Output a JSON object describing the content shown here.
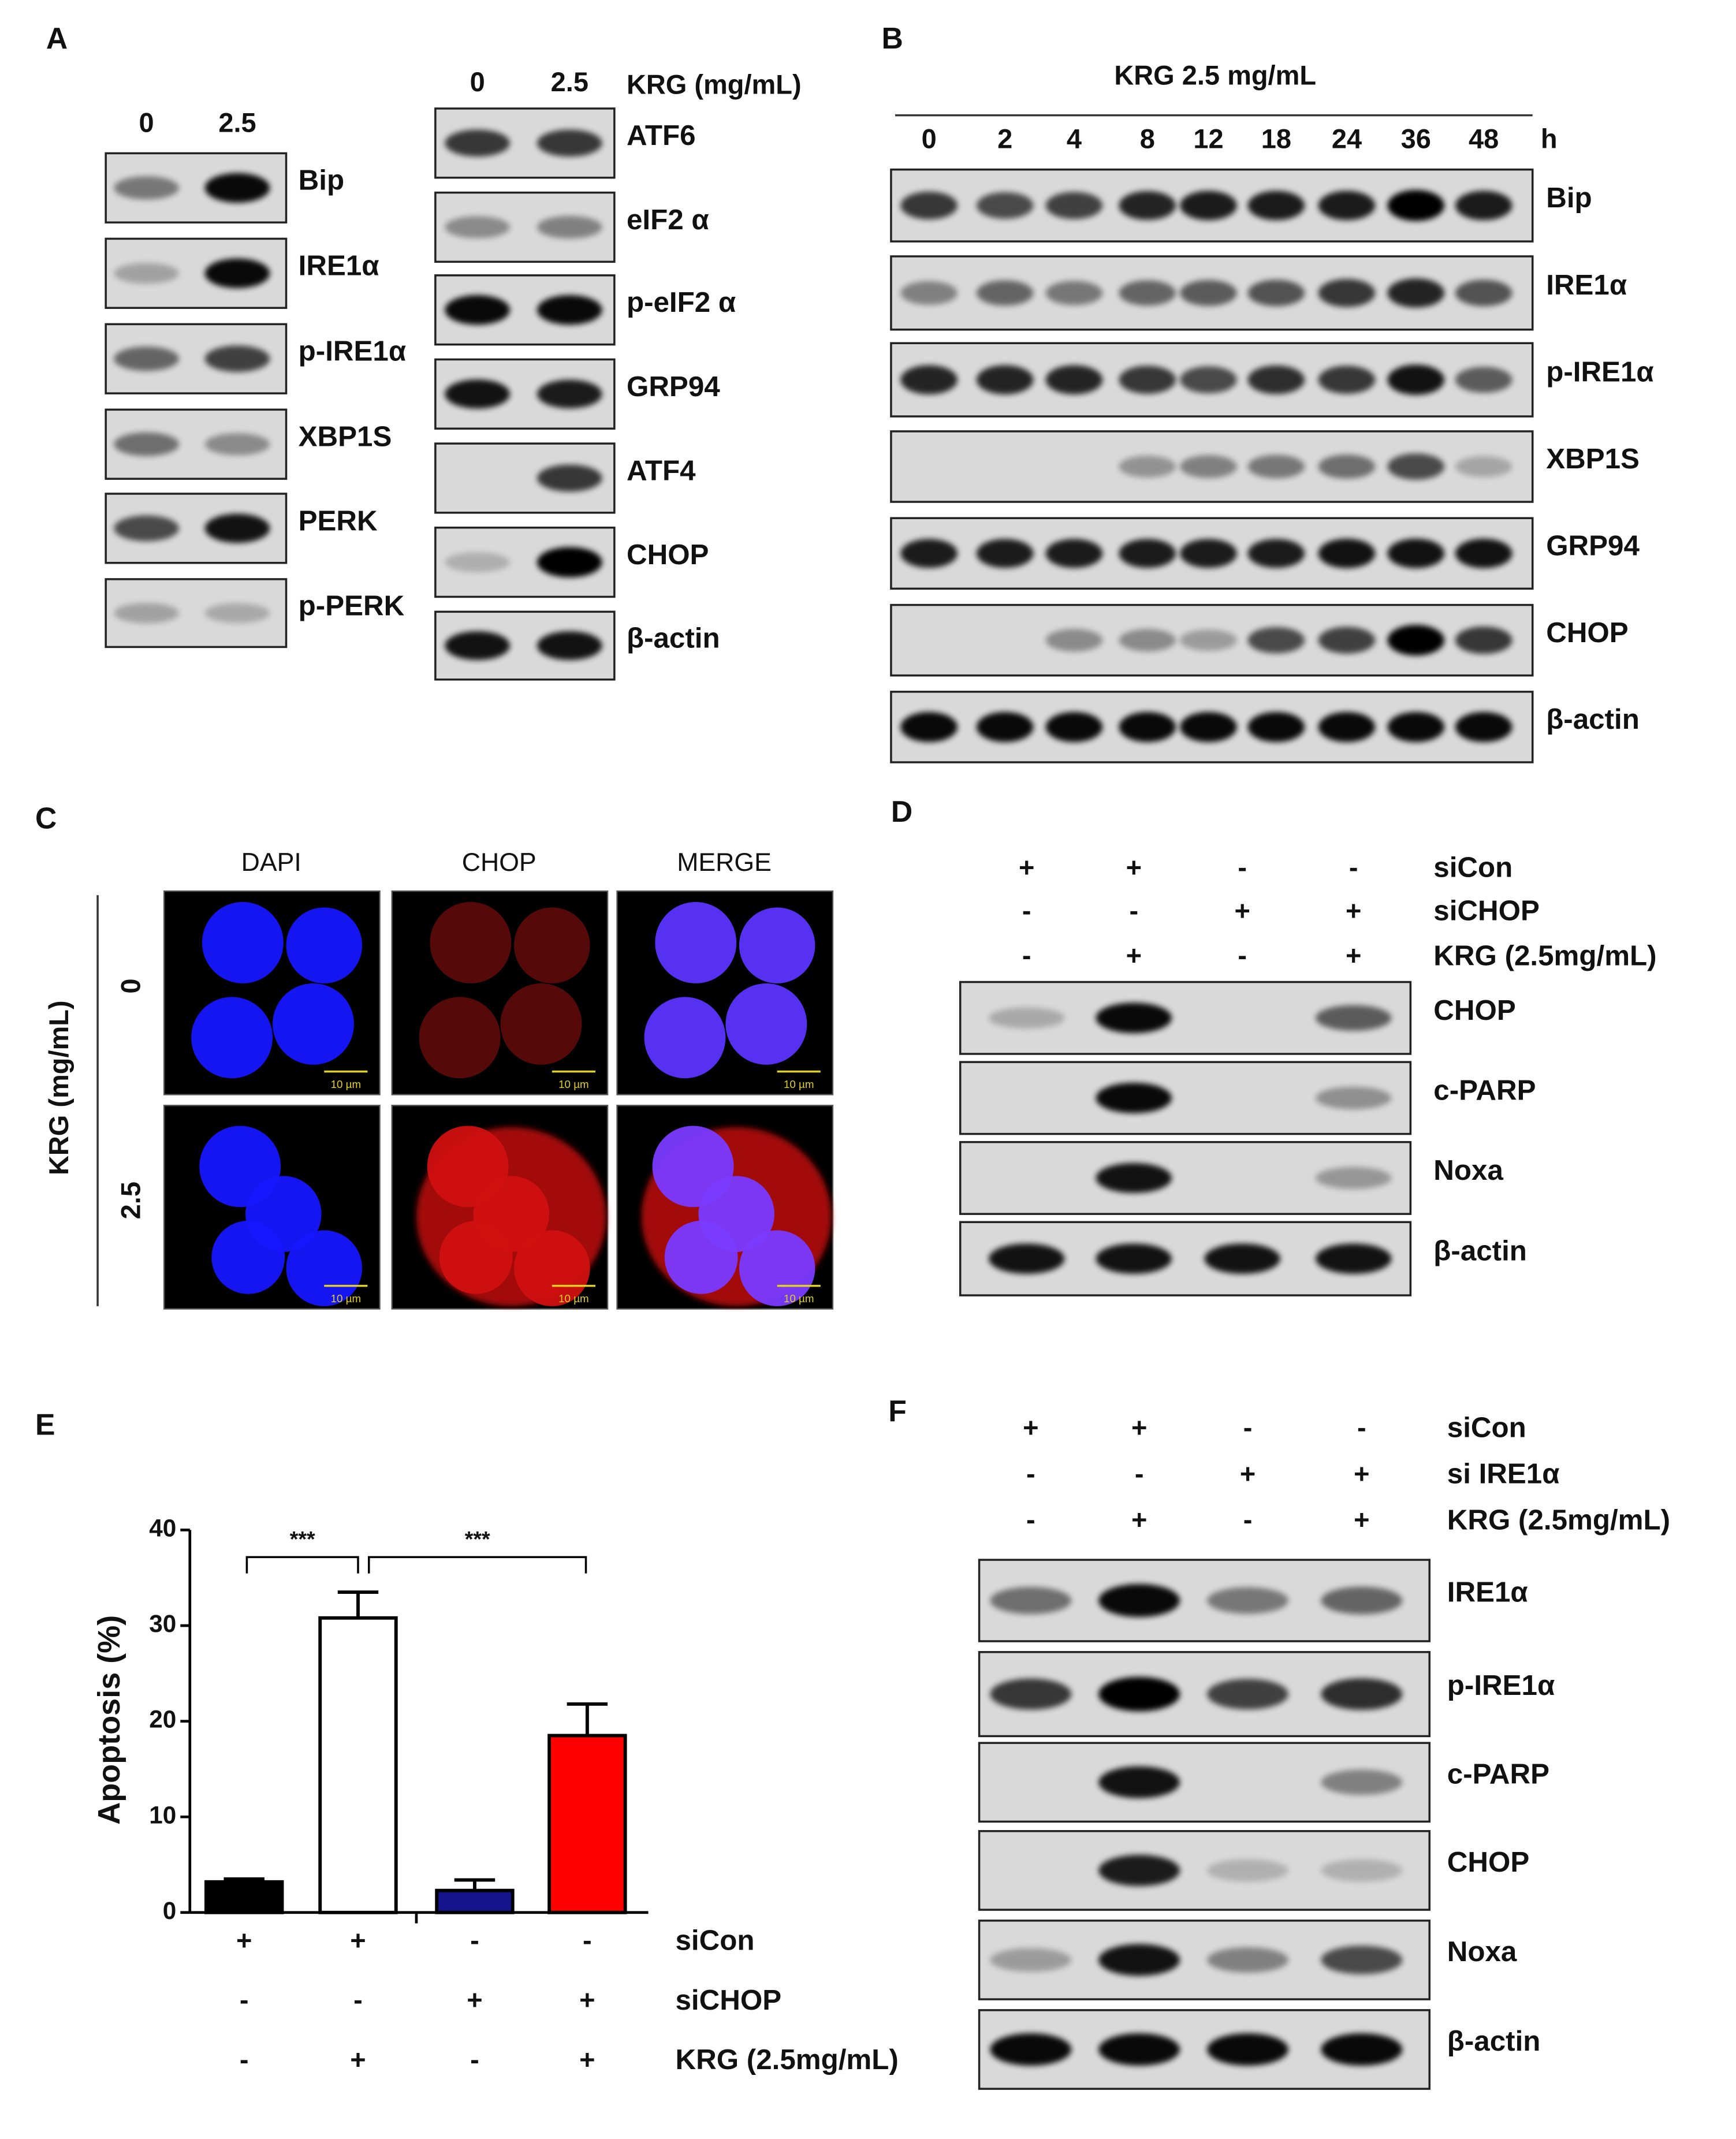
{
  "panel_a": {
    "label": "A",
    "left": {
      "lanes": [
        "0",
        "2.5"
      ],
      "blots": [
        "Bip",
        "IRE1α",
        "p-IRE1α",
        "XBP1S",
        "PERK",
        "p-PERK"
      ]
    },
    "right": {
      "lanes": [
        "0",
        "2.5"
      ],
      "treatment": "KRG (mg/mL)",
      "blots": [
        "ATF6",
        "eIF2 α",
        "p-eIF2 α",
        "GRP94",
        "ATF4",
        "CHOP",
        "β-actin"
      ]
    }
  },
  "panel_b": {
    "label": "B",
    "treatment": "KRG 2.5 mg/mL",
    "lanes": [
      "0",
      "2",
      "4",
      "8",
      "12",
      "18",
      "24",
      "36",
      "48"
    ],
    "unit": "h",
    "blots": [
      "Bip",
      "IRE1α",
      "p-IRE1α",
      "XBP1S",
      "GRP94",
      "CHOP",
      "β-actin"
    ]
  },
  "panel_c": {
    "label": "C",
    "columns": [
      "DAPI",
      "CHOP",
      "MERGE"
    ],
    "axis_label": "KRG (mg/mL)",
    "rows": [
      "0",
      "2.5"
    ],
    "scale_bar": "10 µm"
  },
  "panel_d": {
    "label": "D",
    "conditions": [
      {
        "name": "siCon",
        "signs": [
          "+",
          "+",
          "-",
          "-"
        ]
      },
      {
        "name": "siCHOP",
        "signs": [
          "-",
          "-",
          "+",
          "+"
        ]
      },
      {
        "name": "KRG (2.5mg/mL)",
        "signs": [
          "-",
          "+",
          "-",
          "+"
        ]
      }
    ],
    "blots": [
      "CHOP",
      "c-PARP",
      "Noxa",
      "β-actin"
    ]
  },
  "panel_e": {
    "label": "E",
    "conditions": [
      {
        "name": "siCon",
        "signs": [
          "+",
          "+",
          "-",
          "-"
        ]
      },
      {
        "name": "siCHOP",
        "signs": [
          "-",
          "-",
          "+",
          "+"
        ]
      },
      {
        "name": "KRG (2.5mg/mL)",
        "signs": [
          "-",
          "+",
          "-",
          "+"
        ]
      }
    ]
  },
  "panel_f": {
    "label": "F",
    "conditions": [
      {
        "name": "siCon",
        "signs": [
          "+",
          "+",
          "-",
          "-"
        ]
      },
      {
        "name": "si IRE1α",
        "signs": [
          "-",
          "-",
          "+",
          "+"
        ]
      },
      {
        "name": "KRG (2.5mg/mL)",
        "signs": [
          "-",
          "+",
          "-",
          "+"
        ]
      }
    ],
    "blots": [
      "IRE1α",
      "p-IRE1α",
      "c-PARP",
      "CHOP",
      "Noxa",
      "β-actin"
    ]
  },
  "chart_data": {
    "type": "bar",
    "y_label": "Apoptosis (%)",
    "values": [
      3.2,
      30.8,
      2.3,
      18.5
    ],
    "errors": [
      0.3,
      2.7,
      1.1,
      3.3
    ],
    "colors": [
      "#000000",
      "#ffffff",
      "#14148c",
      "#ff0000"
    ],
    "ylim": [
      0,
      40
    ],
    "yticks": [
      0,
      10,
      20,
      30,
      40
    ],
    "annotations": [
      "***",
      "***"
    ]
  }
}
